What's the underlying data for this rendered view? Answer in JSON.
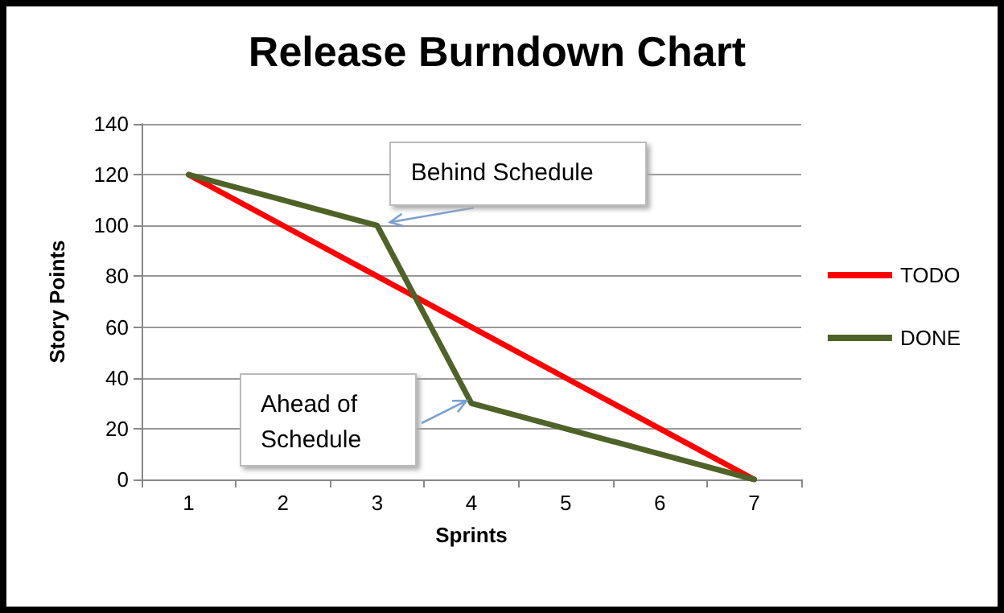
{
  "chart_data": {
    "type": "line",
    "title": "Release Burndown Chart",
    "xlabel": "Sprints",
    "ylabel": "Story Points",
    "categories": [
      "1",
      "2",
      "3",
      "4",
      "5",
      "6",
      "7"
    ],
    "series": [
      {
        "name": "TODO",
        "color": "#ff0000",
        "values": [
          120,
          100,
          80,
          60,
          40,
          20,
          0
        ]
      },
      {
        "name": "DONE",
        "color": "#4f6228",
        "values": [
          120,
          110,
          100,
          30,
          20,
          10,
          0
        ]
      }
    ],
    "ylim": [
      0,
      140
    ],
    "yticks": [
      0,
      20,
      40,
      60,
      80,
      100,
      120,
      140
    ],
    "grid": "y",
    "legend": "right",
    "annotations": [
      {
        "text": "Behind Schedule",
        "x": "3",
        "y": 100
      },
      "Ahead of Schedule"
    ]
  }
}
